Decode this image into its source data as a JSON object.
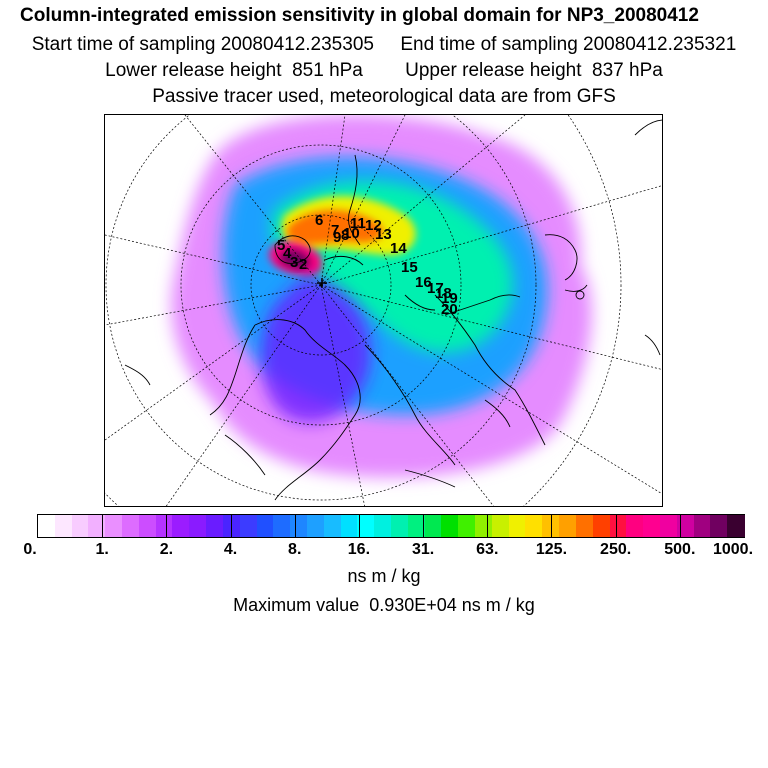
{
  "header": {
    "title": "Column-integrated emission sensitivity in global domain for NP3_20080412",
    "sampling_line": "Start time of sampling 20080412.235305     End time of sampling 20080412.235321",
    "release_line": "Lower release height  851 hPa        Upper release height  837 hPa",
    "tracer_line": "Passive tracer used, meteorological data are from GFS"
  },
  "map": {
    "projection": "north-polar-stereographic",
    "trajectory_labels": [
      "6",
      "7",
      "8",
      "9",
      "10",
      "11",
      "12",
      "13",
      "14",
      "15",
      "16",
      "17",
      "18",
      "19",
      "20",
      "5",
      "4",
      "3",
      "2"
    ]
  },
  "colorbar": {
    "tick_labels": [
      "0.",
      "1.",
      "2.",
      "4.",
      "8.",
      "16.",
      "31.",
      "63.",
      "125.",
      "250.",
      "500.",
      "1000."
    ],
    "colors": [
      "#ffffff",
      "#fde7ff",
      "#f8ccff",
      "#f2b0ff",
      "#ea8fff",
      "#dd6cff",
      "#cc4dff",
      "#b533ff",
      "#9b1cff",
      "#8a1bff",
      "#6a1cff",
      "#4a24ff",
      "#3c3cff",
      "#2050ff",
      "#1e6cff",
      "#1e86ff",
      "#1ea0ff",
      "#18bcff",
      "#00e0ff",
      "#00ffff",
      "#00f0e0",
      "#00f0b0",
      "#00f080",
      "#00e850",
      "#00e000",
      "#40f000",
      "#90f000",
      "#c8f000",
      "#f0f000",
      "#ffe000",
      "#ffc000",
      "#ffa000",
      "#ff7000",
      "#ff4000",
      "#ff1040",
      "#ff0080",
      "#ff0090",
      "#f000a0",
      "#d000a0",
      "#a00080",
      "#700060",
      "#3a0030"
    ],
    "units": "ns m / kg",
    "maximum_text": "Maximum value  0.930E+04 ns m / kg"
  }
}
